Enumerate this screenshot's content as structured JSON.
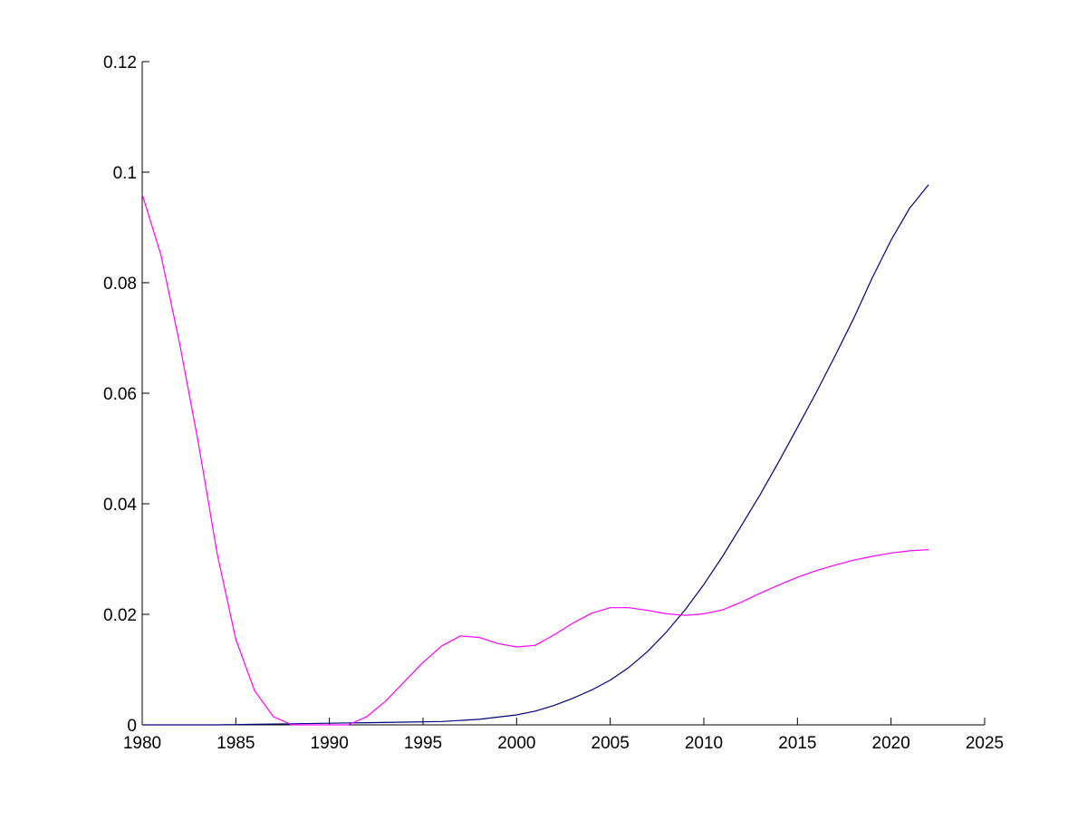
{
  "chart_data": {
    "type": "line",
    "title": "",
    "xlabel": "",
    "ylabel": "",
    "xlim": [
      1980,
      2025
    ],
    "ylim": [
      0,
      0.12
    ],
    "x_ticks": [
      "1980",
      "1985",
      "1990",
      "1995",
      "2000",
      "2005",
      "2010",
      "2015",
      "2020",
      "2025"
    ],
    "y_ticks": [
      "0",
      "0.02",
      "0.04",
      "0.06",
      "0.08",
      "0.1",
      "0.12"
    ],
    "x_tick_values": [
      1980,
      1985,
      1990,
      1995,
      2000,
      2005,
      2010,
      2015,
      2020,
      2025
    ],
    "y_tick_values": [
      0,
      0.02,
      0.04,
      0.06,
      0.08,
      0.1,
      0.12
    ],
    "grid": false,
    "legend": null,
    "series": [
      {
        "color": "#000080",
        "x": [
          1980,
          1982,
          1984,
          1986,
          1988,
          1990,
          1992,
          1994,
          1996,
          1998,
          2000,
          2001,
          2002,
          2003,
          2004,
          2005,
          2006,
          2007,
          2008,
          2009,
          2010,
          2011,
          2012,
          2013,
          2014,
          2015,
          2016,
          2017,
          2018,
          2019,
          2020,
          2021,
          2022
        ],
        "y": [
          0.0,
          0.0,
          0.0,
          0.0001,
          0.0002,
          0.0003,
          0.0004,
          0.0005,
          0.0006,
          0.001,
          0.0018,
          0.0025,
          0.0035,
          0.0048,
          0.0063,
          0.0081,
          0.0104,
          0.0133,
          0.0168,
          0.0208,
          0.0254,
          0.0305,
          0.036,
          0.0416,
          0.0476,
          0.0538,
          0.0601,
          0.0667,
          0.0735,
          0.0809,
          0.0877,
          0.0935,
          0.0977
        ]
      },
      {
        "color": "#ff00ff",
        "x": [
          1980,
          1981,
          1982,
          1983,
          1984,
          1985,
          1986,
          1987,
          1988,
          1989,
          1990,
          1991,
          1992,
          1993,
          1994,
          1995,
          1996,
          1997,
          1998,
          1999,
          2000,
          2001,
          2002,
          2003,
          2004,
          2005,
          2006,
          2007,
          2008,
          2009,
          2010,
          2011,
          2012,
          2013,
          2014,
          2015,
          2016,
          2017,
          2018,
          2019,
          2020,
          2021,
          2022
        ],
        "y": [
          0.096,
          0.085,
          0.069,
          0.051,
          0.031,
          0.0155,
          0.0062,
          0.0015,
          0.0,
          0.0,
          0.0,
          0.0,
          0.0015,
          0.0043,
          0.0078,
          0.0113,
          0.0143,
          0.0161,
          0.0158,
          0.0147,
          0.0141,
          0.0144,
          0.0163,
          0.0184,
          0.0202,
          0.0212,
          0.0212,
          0.0207,
          0.0201,
          0.0198,
          0.0201,
          0.0208,
          0.0222,
          0.0238,
          0.0253,
          0.0267,
          0.0279,
          0.0289,
          0.0298,
          0.0305,
          0.0311,
          0.0315,
          0.0317
        ]
      }
    ]
  }
}
